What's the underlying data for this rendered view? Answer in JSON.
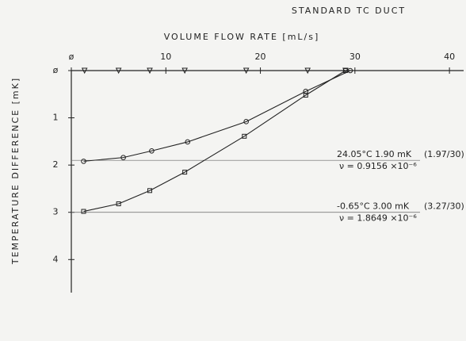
{
  "chart_data": {
    "type": "line",
    "title": "STANDARD TC DUCT",
    "x_label": "VOLUME FLOW RATE [mL/s]",
    "y_label": "TEMPERATURE DIFFERENCE [mK]",
    "xlim": [
      0,
      41.5
    ],
    "ylim": [
      0,
      4.7
    ],
    "y_inverted": true,
    "xticks": [
      {
        "value": 0,
        "label": "ø"
      },
      10,
      20,
      30,
      40
    ],
    "yticks": [
      {
        "value": 0,
        "label": "ø"
      },
      1,
      2,
      3,
      4
    ],
    "series": [
      {
        "marker": "circle",
        "color": "#222",
        "x": [
          1.3,
          5.5,
          8.5,
          12.3,
          18.5,
          24.8,
          29.5
        ],
        "values": [
          1.92,
          1.84,
          1.7,
          1.51,
          1.08,
          0.44,
          0
        ]
      },
      {
        "marker": "square",
        "color": "#222",
        "x": [
          1.3,
          5,
          8.3,
          12,
          18.3,
          24.8,
          29
        ],
        "values": [
          2.98,
          2.82,
          2.54,
          2.15,
          1.39,
          0.52,
          0
        ]
      },
      {
        "marker": "triangle",
        "color": "#222",
        "line": false,
        "x": [
          1.4,
          5,
          8.3,
          12,
          18.5,
          25,
          29
        ],
        "values": [
          0,
          0,
          0,
          0,
          0,
          0,
          0
        ]
      }
    ],
    "annotations": [
      {
        "y": 1.9,
        "label": "24.05°C   1.90 mK",
        "ratio": "(1.97/30)",
        "viscosity": "ν = 0.9156 ×10⁻⁶"
      },
      {
        "y": 3.0,
        "label": "-0.65°C   3.00 mK",
        "ratio": "(3.27/30)",
        "viscosity": "ν = 1.8649 ×10⁻⁶"
      }
    ]
  }
}
